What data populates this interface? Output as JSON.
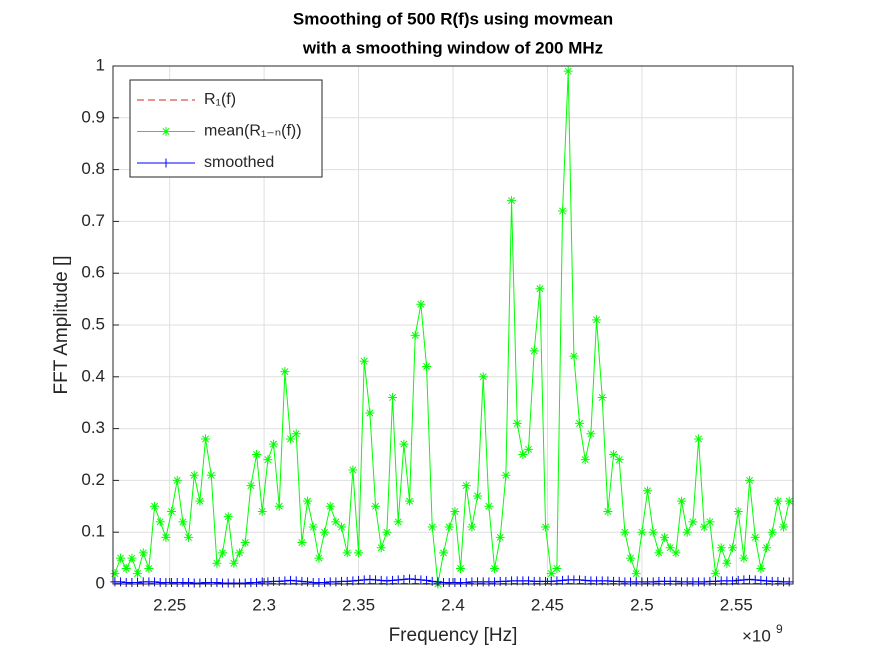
{
  "chart_data": {
    "type": "line",
    "title": [
      "Smoothing of 500 R(f)s using movmean",
      "with a smoothing window of 200 MHz"
    ],
    "xlabel": "Frequency [Hz]",
    "ylabel": "FFT Amplitude []",
    "x_exponent_base": "×10",
    "x_exponent_power": "9",
    "x": [
      2221000000,
      2224000000,
      2227000000,
      2230000000,
      2233000000,
      2236000000,
      2239000000,
      2242000000,
      2245000000,
      2248000000,
      2251000000,
      2254000000,
      2257000000,
      2260000000,
      2263000000,
      2266000000,
      2269000000,
      2272000000,
      2275000000,
      2278000000,
      2281000000,
      2284000000,
      2287000000,
      2290000000,
      2293000000,
      2296000000,
      2299000000,
      2302000000,
      2305000000,
      2308000000,
      2311000000,
      2314000000,
      2317000000,
      2320000000,
      2323000000,
      2326000000,
      2329000000,
      2332000000,
      2335000000,
      2338000000,
      2341000000,
      2344000000,
      2347000000,
      2350000000,
      2353000000,
      2356000000,
      2359000000,
      2362000000,
      2365000000,
      2368000000,
      2371000000,
      2374000000,
      2377000000,
      2380000000,
      2383000000,
      2386000000,
      2389000000,
      2392000000,
      2395000000,
      2398000000,
      2401000000,
      2404000000,
      2407000000,
      2410000000,
      2413000000,
      2416000000,
      2419000000,
      2422000000,
      2425000000,
      2428000000,
      2431000000,
      2434000000,
      2437000000,
      2440000000,
      2443000000,
      2446000000,
      2449000000,
      2452000000,
      2455000000,
      2458000000,
      2461000000,
      2464000000,
      2467000000,
      2470000000,
      2473000000,
      2476000000,
      2479000000,
      2482000000,
      2485000000,
      2488000000,
      2491000000,
      2494000000,
      2497000000,
      2500000000,
      2503000000,
      2506000000,
      2509000000,
      2512000000,
      2515000000,
      2518000000,
      2521000000,
      2524000000,
      2527000000,
      2530000000,
      2533000000,
      2536000000,
      2539000000,
      2542000000,
      2545000000,
      2548000000,
      2551000000,
      2554000000,
      2557000000,
      2560000000,
      2563000000,
      2566000000,
      2569000000,
      2572000000,
      2575000000,
      2578000000
    ],
    "series": [
      {
        "name": "R₁(f)",
        "color": "#d62728",
        "line_style": "dashed",
        "marker": "none",
        "values": [
          0.001,
          0.001,
          0.001,
          0.001,
          0.001,
          0.001,
          0.001,
          0.001,
          0.001,
          0.001,
          0.001,
          0.001,
          0.001,
          0.001,
          0.001,
          0.001,
          0.001,
          0.001,
          0.001,
          0.001,
          0.001,
          0.001,
          0.001,
          0.001,
          0.001,
          0.001,
          0.001,
          0.001,
          0.001,
          0.001,
          0.001,
          0.001,
          0.001,
          0.001,
          0.001,
          0.001,
          0.001,
          0.001,
          0.001,
          0.001,
          0.001,
          0.001,
          0.001,
          0.001,
          0.001,
          0.001,
          0.001,
          0.001,
          0.001,
          0.001,
          0.001,
          0.001,
          0.001,
          0.001,
          0.001,
          0.001,
          0.001,
          0.001,
          0.001,
          0.001,
          0.001,
          0.001,
          0.001,
          0.001,
          0.001,
          0.001,
          0.001,
          0.001,
          0.001,
          0.001,
          0.001,
          0.001,
          0.001,
          0.001,
          0.001,
          0.001,
          0.001,
          0.001,
          0.001,
          0.001,
          0.001,
          0.001,
          0.001,
          0.001,
          0.001,
          0.001,
          0.001,
          0.001,
          0.001,
          0.001,
          0.001,
          0.001,
          0.001,
          0.001,
          0.001,
          0.001,
          0.001,
          0.001,
          0.001,
          0.001,
          0.001,
          0.001,
          0.001,
          0.001,
          0.001,
          0.001,
          0.001,
          0.001,
          0.001,
          0.001,
          0.001,
          0.001,
          0.001,
          0.001,
          0.001,
          0.001,
          0.001,
          0.001,
          0.001,
          0.001
        ]
      },
      {
        "name": "mean(R₁₋ₙ(f))",
        "color": "#00ff00",
        "line_style": "solid",
        "marker": "asterisk",
        "values": [
          0.02,
          0.05,
          0.03,
          0.05,
          0.02,
          0.06,
          0.03,
          0.15,
          0.12,
          0.09,
          0.14,
          0.2,
          0.12,
          0.09,
          0.21,
          0.16,
          0.28,
          0.21,
          0.04,
          0.06,
          0.13,
          0.04,
          0.06,
          0.08,
          0.19,
          0.25,
          0.14,
          0.24,
          0.27,
          0.15,
          0.41,
          0.28,
          0.29,
          0.08,
          0.16,
          0.11,
          0.05,
          0.1,
          0.15,
          0.12,
          0.11,
          0.06,
          0.22,
          0.06,
          0.43,
          0.33,
          0.15,
          0.07,
          0.1,
          0.36,
          0.12,
          0.27,
          0.16,
          0.48,
          0.54,
          0.42,
          0.11,
          0,
          0.06,
          0.11,
          0.14,
          0.03,
          0.19,
          0.11,
          0.17,
          0.4,
          0.15,
          0.03,
          0.09,
          0.21,
          0.74,
          0.31,
          0.25,
          0.26,
          0.45,
          0.57,
          0.11,
          0.02,
          0.03,
          0.72,
          0.99,
          0.44,
          0.31,
          0.24,
          0.29,
          0.51,
          0.36,
          0.14,
          0.25,
          0.24,
          0.1,
          0.05,
          0.02,
          0.1,
          0.18,
          0.1,
          0.06,
          0.09,
          0.07,
          0.06,
          0.16,
          0.1,
          0.12,
          0.28,
          0.11,
          0.12,
          0.02,
          0.07,
          0.04,
          0.07,
          0.14,
          0.05,
          0.2,
          0.09,
          0.03,
          0.07,
          0.1,
          0.16,
          0.11,
          0.16
        ]
      },
      {
        "name": "smoothed",
        "color": "#0000ff",
        "line_style": "solid",
        "marker": "plus",
        "values": [
          0.004,
          0.004,
          0.003,
          0.003,
          0.003,
          0.004,
          0.004,
          0.004,
          0.003,
          0.003,
          0.003,
          0.003,
          0.003,
          0.003,
          0.002,
          0.002,
          0.003,
          0.003,
          0.003,
          0.002,
          0.002,
          0.002,
          0.002,
          0.002,
          0.003,
          0.003,
          0.004,
          0.004,
          0.005,
          0.005,
          0.006,
          0.007,
          0.006,
          0.005,
          0.004,
          0.003,
          0.003,
          0.003,
          0.004,
          0.004,
          0.005,
          0.005,
          0.006,
          0.007,
          0.008,
          0.009,
          0.008,
          0.007,
          0.006,
          0.007,
          0.008,
          0.009,
          0.01,
          0.009,
          0.008,
          0.007,
          0.005,
          0.004,
          0.003,
          0.003,
          0.003,
          0.003,
          0.003,
          0.004,
          0.004,
          0.004,
          0.004,
          0.004,
          0.005,
          0.005,
          0.006,
          0.006,
          0.006,
          0.006,
          0.005,
          0.005,
          0.005,
          0.005,
          0.006,
          0.007,
          0.008,
          0.008,
          0.008,
          0.007,
          0.006,
          0.006,
          0.006,
          0.006,
          0.005,
          0.005,
          0.004,
          0.004,
          0.004,
          0.004,
          0.004,
          0.004,
          0.005,
          0.005,
          0.005,
          0.005,
          0.004,
          0.004,
          0.004,
          0.004,
          0.004,
          0.005,
          0.005,
          0.006,
          0.006,
          0.006,
          0.007,
          0.008,
          0.009,
          0.008,
          0.007,
          0.006,
          0.005,
          0.005,
          0.004,
          0.004
        ]
      }
    ],
    "xlim": [
      2220000000,
      2580000000
    ],
    "xticks": [
      {
        "value": 2250000000,
        "label": "2.25"
      },
      {
        "value": 2300000000,
        "label": "2.3"
      },
      {
        "value": 2350000000,
        "label": "2.35"
      },
      {
        "value": 2400000000,
        "label": "2.4"
      },
      {
        "value": 2450000000,
        "label": "2.45"
      },
      {
        "value": 2500000000,
        "label": "2.5"
      },
      {
        "value": 2550000000,
        "label": "2.55"
      }
    ],
    "ylim": [
      0,
      1
    ],
    "yticks": [
      0,
      0.1,
      0.2,
      0.3,
      0.4,
      0.5,
      0.6,
      0.7,
      0.8,
      0.9,
      1
    ],
    "grid": true,
    "legend": "upper-left"
  }
}
